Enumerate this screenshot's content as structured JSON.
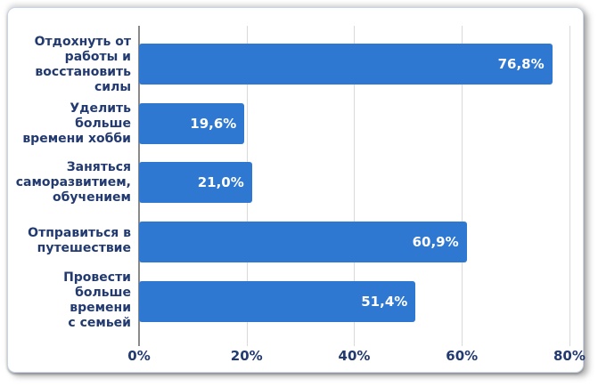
{
  "chart_data": {
    "type": "bar",
    "orientation": "horizontal",
    "title": "",
    "xlabel": "",
    "ylabel": "",
    "categories": [
      "Отдохнуть от работы и восстановить силы",
      "Уделить больше времени хобби",
      "Заняться саморазвитием, обучением",
      "Отправиться в путешествие",
      "Провести больше времени с семьей"
    ],
    "label_lines": [
      [
        "Отдохнуть от",
        "работы и",
        "восстановить",
        "силы"
      ],
      [
        "Уделить больше",
        "времени хобби"
      ],
      [
        "Заняться",
        "саморазвитием,",
        "обучением"
      ],
      [
        "Отправиться в",
        "путешествие"
      ],
      [
        "Провести",
        "больше времени",
        "с семьей"
      ]
    ],
    "values": [
      76.8,
      19.6,
      21.0,
      60.9,
      51.4
    ],
    "value_labels": [
      "76,8%",
      "19,6%",
      "21,0%",
      "60,9%",
      "51,4%"
    ],
    "x_ticks": [
      {
        "value": 0,
        "label": "0%"
      },
      {
        "value": 20,
        "label": "20%"
      },
      {
        "value": 40,
        "label": "40%"
      },
      {
        "value": 60,
        "label": "60%"
      },
      {
        "value": 80,
        "label": "80%"
      }
    ],
    "xlim": [
      0,
      81
    ],
    "grid": true,
    "legend": false,
    "colors": {
      "bar": "#2e78d2",
      "category_label": "#223a70",
      "tick_label": "#223a70",
      "value_label": "#ffffff",
      "axis_line": "#8a8a8a",
      "gridline": "#d9d9d9",
      "card_border": "#c9d4e6",
      "background": "#ffffff"
    }
  }
}
